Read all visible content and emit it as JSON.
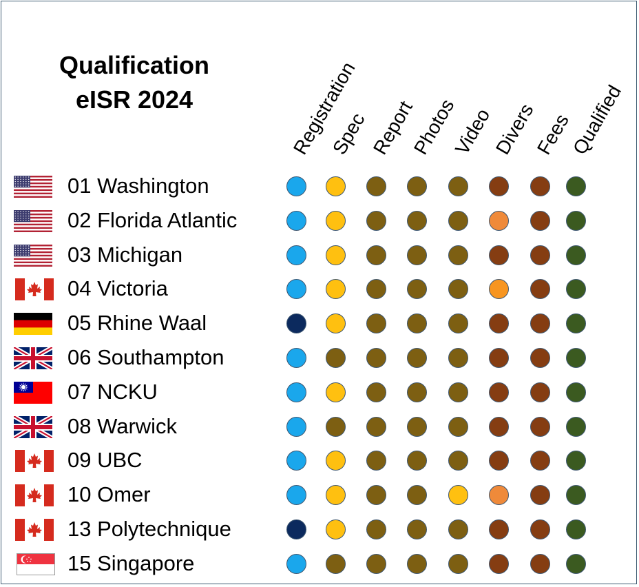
{
  "title": {
    "line1": "Qualification",
    "line2": "eISR 2024"
  },
  "columns": [
    "Registration",
    "Spec",
    "Report",
    "Photos",
    "Video",
    "Divers",
    "Fees",
    "Qualified"
  ],
  "status_colors": {
    "light-blue": "#1aa7ec",
    "navy": "#0c2a5e",
    "yellow": "#ffc010",
    "olive": "#7d5f12",
    "orange": "#ef8a3a",
    "bright-orange": "#f79520",
    "brown": "#853d12",
    "dark-green": "#3b5a20"
  },
  "rows": [
    {
      "label": "01 Washington",
      "flag": "usa",
      "status": [
        "light-blue",
        "yellow",
        "olive",
        "olive",
        "olive",
        "brown",
        "brown",
        "dark-green"
      ]
    },
    {
      "label": "02 Florida Atlantic",
      "flag": "usa",
      "status": [
        "light-blue",
        "yellow",
        "olive",
        "olive",
        "olive",
        "orange",
        "brown",
        "dark-green"
      ]
    },
    {
      "label": "03 Michigan",
      "flag": "usa",
      "status": [
        "light-blue",
        "yellow",
        "olive",
        "olive",
        "olive",
        "brown",
        "brown",
        "dark-green"
      ]
    },
    {
      "label": "04 Victoria",
      "flag": "canada",
      "status": [
        "light-blue",
        "yellow",
        "olive",
        "olive",
        "olive",
        "bright-orange",
        "brown",
        "dark-green"
      ]
    },
    {
      "label": "05 Rhine Waal",
      "flag": "germany",
      "status": [
        "navy",
        "yellow",
        "olive",
        "olive",
        "olive",
        "brown",
        "brown",
        "dark-green"
      ]
    },
    {
      "label": "06 Southampton",
      "flag": "uk",
      "status": [
        "light-blue",
        "olive",
        "olive",
        "olive",
        "olive",
        "brown",
        "brown",
        "dark-green"
      ]
    },
    {
      "label": "07 NCKU",
      "flag": "taiwan",
      "status": [
        "light-blue",
        "yellow",
        "olive",
        "olive",
        "olive",
        "brown",
        "brown",
        "dark-green"
      ]
    },
    {
      "label": "08 Warwick",
      "flag": "uk",
      "status": [
        "light-blue",
        "olive",
        "olive",
        "olive",
        "olive",
        "brown",
        "brown",
        "dark-green"
      ]
    },
    {
      "label": "09 UBC",
      "flag": "canada",
      "status": [
        "light-blue",
        "yellow",
        "olive",
        "olive",
        "olive",
        "brown",
        "brown",
        "dark-green"
      ]
    },
    {
      "label": "10 Omer",
      "flag": "canada",
      "status": [
        "light-blue",
        "yellow",
        "olive",
        "olive",
        "yellow",
        "orange",
        "brown",
        "dark-green"
      ]
    },
    {
      "label": "13 Polytechnique",
      "flag": "canada",
      "status": [
        "navy",
        "yellow",
        "olive",
        "olive",
        "olive",
        "brown",
        "brown",
        "dark-green"
      ]
    },
    {
      "label": "15 Singapore",
      "flag": "singapore",
      "status": [
        "light-blue",
        "olive",
        "olive",
        "olive",
        "olive",
        "brown",
        "brown",
        "dark-green"
      ]
    }
  ]
}
